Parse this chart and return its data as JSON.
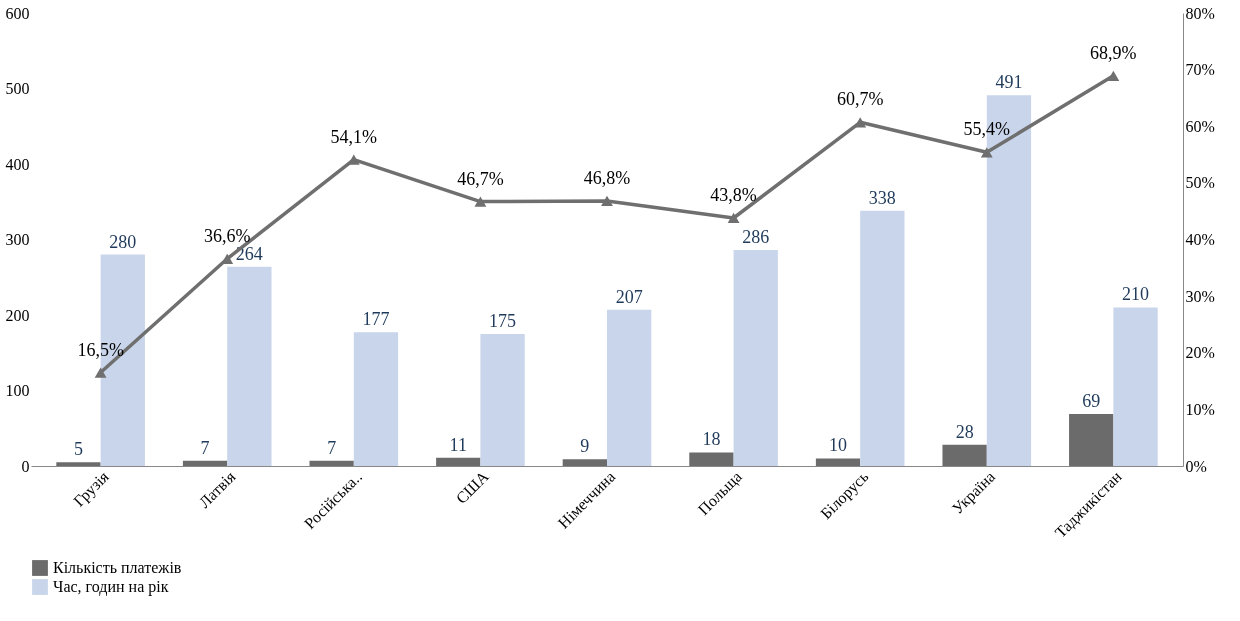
{
  "chart_data": {
    "type": "bar",
    "categories": [
      "Грузія",
      "Латвія",
      "Російська..",
      "США",
      "Німеччина",
      "Польща",
      "Білорусь",
      "Україна",
      "Таджикістан"
    ],
    "series": [
      {
        "name": "Кількість платежів",
        "color": "#6b6b6b",
        "values": [
          5,
          7,
          7,
          11,
          9,
          18,
          10,
          28,
          69
        ]
      },
      {
        "name": "Час, годин на рік",
        "color": "#c9d5ea",
        "values": [
          280,
          264,
          177,
          175,
          207,
          286,
          338,
          491,
          210
        ]
      },
      {
        "type": "line",
        "axis": "y2",
        "color": "#6f6f6f",
        "values": [
          16.5,
          36.6,
          54.1,
          46.7,
          46.8,
          43.8,
          60.7,
          55.4,
          68.9
        ],
        "value_labels": [
          "16,5%",
          "36,6%",
          "54,1%",
          "46,7%",
          "46,8%",
          "43,8%",
          "60,7%",
          "55,4%",
          "68,9%"
        ]
      }
    ],
    "ylim": [
      0,
      600
    ],
    "yticks": [
      0,
      100,
      200,
      300,
      400,
      500,
      600
    ],
    "y2lim": [
      0,
      80
    ],
    "y2ticks": [
      {
        "value": 0,
        "label": "0%"
      },
      {
        "value": 10,
        "label": "10%"
      },
      {
        "value": 20,
        "label": "20%"
      },
      {
        "value": 30,
        "label": "30%"
      },
      {
        "value": 40,
        "label": "40%"
      },
      {
        "value": 50,
        "label": "50%"
      },
      {
        "value": 60,
        "label": "60%"
      },
      {
        "value": 70,
        "label": "70%"
      },
      {
        "value": 80,
        "label": "80%"
      }
    ],
    "data_labels": true,
    "marker": "triangle",
    "grid": false,
    "legend": "bottom"
  }
}
